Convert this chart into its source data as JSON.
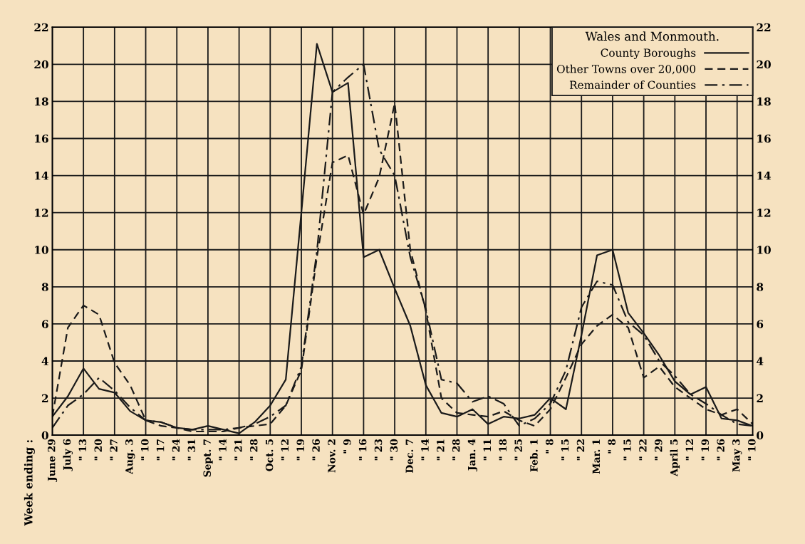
{
  "chart_data": {
    "type": "line",
    "annotations": [
      "Week ending :"
    ],
    "legend_title": "Wales and Monmouth.",
    "categories": [
      "June 29",
      "July 6",
      "\" 13",
      "\" 20",
      "\" 27",
      "Aug. 3",
      "\" 10",
      "\" 17",
      "\" 24",
      "\" 31",
      "Sept. 7",
      "\" 14",
      "\" 21",
      "\" 28",
      "Oct. 5",
      "\" 12",
      "\" 19",
      "\" 26",
      "Nov. 2",
      "\" 9",
      "\" 16",
      "\" 23",
      "\" 30",
      "Dec. 7",
      "\" 14",
      "\" 21",
      "\" 28",
      "Jan. 4",
      "\" 11",
      "\" 18",
      "\" 25",
      "Feb. 1",
      "\" 8",
      "\" 15",
      "\" 22",
      "Mar. 1",
      "\" 8",
      "\" 15",
      "\" 22",
      "\" 29",
      "April 5",
      "\" 12",
      "\" 19",
      "\" 26",
      "May 3",
      "\" 10"
    ],
    "series": [
      {
        "name": "County Boroughs",
        "color": "#1a1a1a",
        "line_style": "solid",
        "values": [
          1.0,
          2.1,
          3.6,
          2.5,
          2.3,
          1.3,
          0.8,
          0.7,
          0.4,
          0.3,
          0.5,
          0.3,
          0.1,
          0.7,
          1.6,
          3.0,
          12.0,
          21.1,
          18.5,
          19.0,
          9.6,
          10.0,
          7.9,
          5.9,
          2.7,
          1.2,
          1.0,
          1.4,
          0.6,
          1.0,
          0.9,
          1.1,
          2.0,
          1.4,
          5.4,
          9.7,
          10.0,
          6.6,
          5.5,
          4.3,
          2.9,
          2.2,
          2.6,
          0.9,
          0.8,
          0.5
        ]
      },
      {
        "name": "Other Towns over 20,000",
        "color": "#1a1a1a",
        "line_style": "dashed",
        "values": [
          1.0,
          5.8,
          7.0,
          6.5,
          3.9,
          2.7,
          0.8,
          0.5,
          0.4,
          0.2,
          0.2,
          0.2,
          0.4,
          0.5,
          0.6,
          1.6,
          3.5,
          9.6,
          14.7,
          15.1,
          11.9,
          13.9,
          17.9,
          10.0,
          6.7,
          2.0,
          1.2,
          1.1,
          1.0,
          1.3,
          0.8,
          0.5,
          1.4,
          3.1,
          4.9,
          5.9,
          6.5,
          5.8,
          3.1,
          3.7,
          2.6,
          2.0,
          1.4,
          1.1,
          1.4,
          0.6
        ]
      },
      {
        "name": "Remainder of Counties",
        "color": "#1a1a1a",
        "line_style": "dashdot",
        "values": [
          0.4,
          1.6,
          2.2,
          3.1,
          2.4,
          1.5,
          0.8,
          0.7,
          0.4,
          0.3,
          0.3,
          0.3,
          0.4,
          0.6,
          1.0,
          1.6,
          3.7,
          9.9,
          18.5,
          19.3,
          20.0,
          15.4,
          14.0,
          9.6,
          6.8,
          3.0,
          2.8,
          1.8,
          2.1,
          1.7,
          0.5,
          0.9,
          1.7,
          3.5,
          6.9,
          8.3,
          8.1,
          6.1,
          5.4,
          4.0,
          3.2,
          2.2,
          1.7,
          1.1,
          0.6,
          0.5
        ]
      }
    ],
    "ylim": [
      0,
      22
    ],
    "yticks": [
      0,
      2,
      4,
      6,
      8,
      10,
      12,
      14,
      16,
      18,
      20,
      22
    ],
    "y2lim": [
      0,
      22
    ],
    "y2ticks": [
      0,
      2,
      4,
      6,
      8,
      10,
      12,
      14,
      16,
      18,
      20,
      22
    ],
    "grid": true,
    "legend": "top right",
    "marker": "none"
  }
}
